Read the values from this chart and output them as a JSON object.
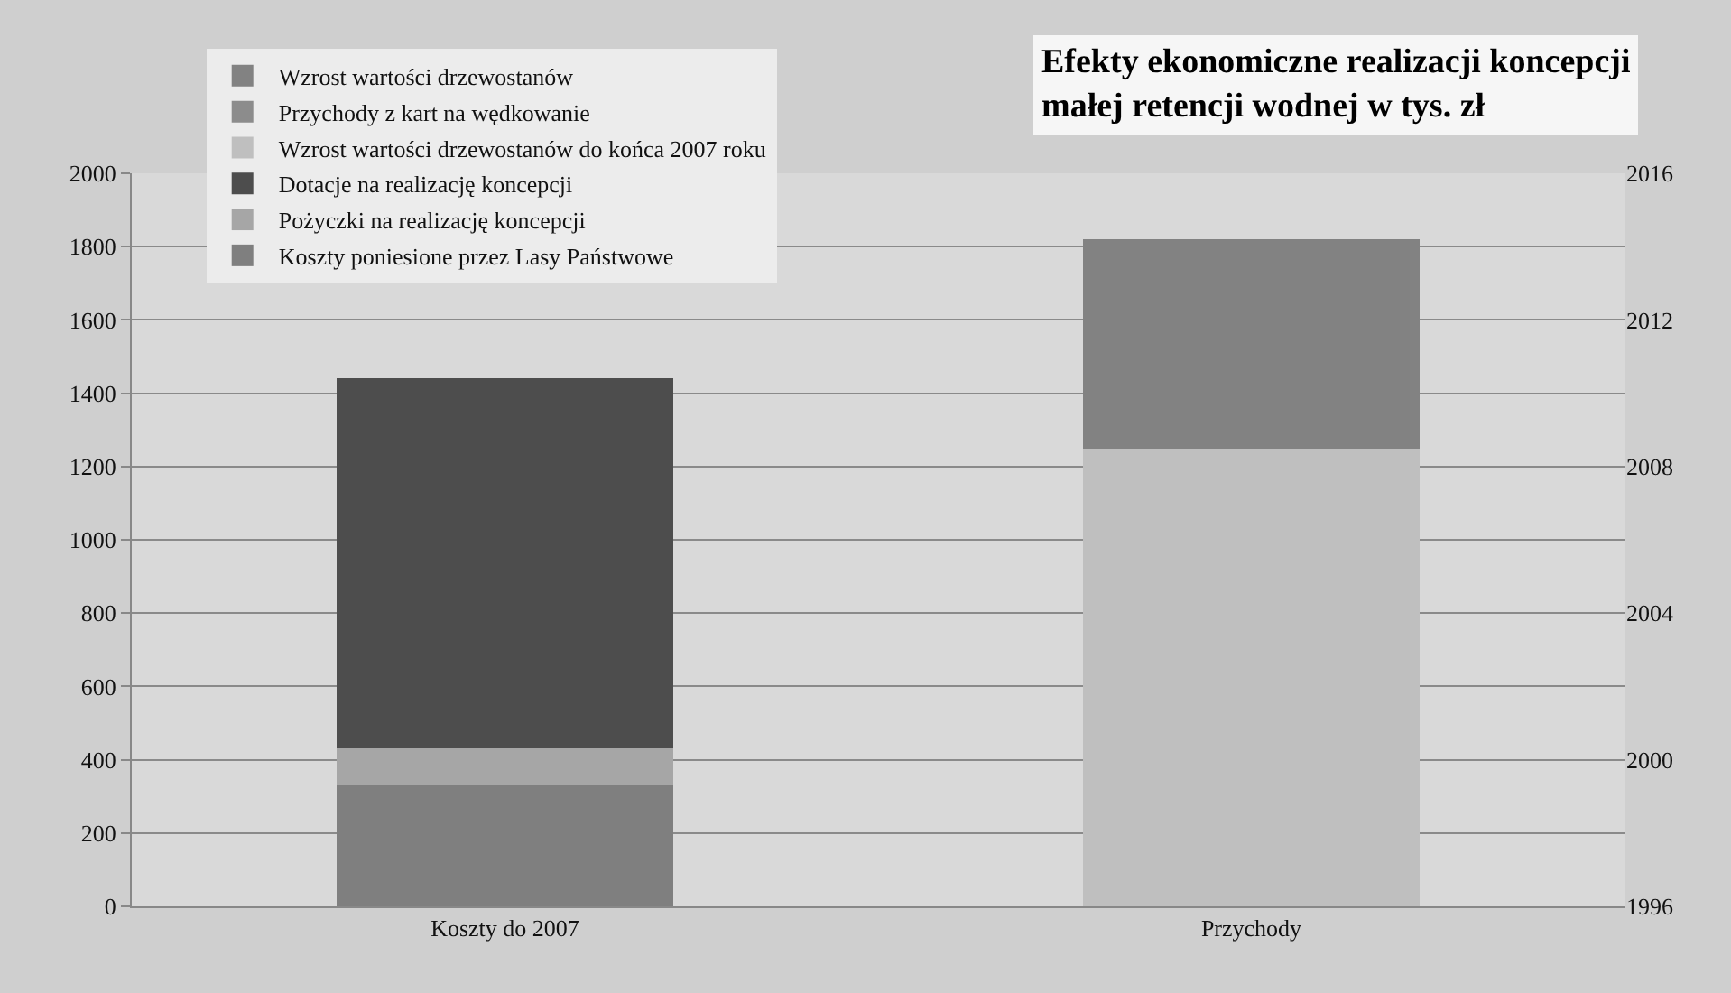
{
  "chart_data": {
    "type": "bar",
    "title": "Efekty ekonomiczne realizacji koncepcji\nmałej retencji wodnej w tys. zł",
    "categories": [
      "Koszty do 2007",
      "Przychody"
    ],
    "stacked": true,
    "series": [
      {
        "name": "Koszty poniesione przez Lasy Państwowe",
        "color": "#7f7f7f",
        "values": [
          330,
          null
        ]
      },
      {
        "name": "Pożyczki na realizację koncepcji",
        "color": "#a6a6a6",
        "values": [
          100,
          null
        ]
      },
      {
        "name": "Dotacje na realizację koncepcji",
        "color": "#4d4d4d",
        "values": [
          1010,
          null
        ]
      },
      {
        "name": "Wzrost wartości drzewostanów do końca 2007 roku",
        "color": "#bfbfbf",
        "values": [
          null,
          1250
        ]
      },
      {
        "name": "Przychody z kart na wędkowanie",
        "color": "#8c8c8c",
        "values": [
          null,
          null
        ]
      },
      {
        "name": "Wzrost wartości drzewostanów",
        "color": "#828282",
        "values": [
          null,
          570
        ]
      }
    ],
    "ylim": [
      0,
      2000
    ],
    "yticks": [
      0,
      200,
      400,
      600,
      800,
      1000,
      1200,
      1400,
      1600,
      1800,
      2000
    ],
    "y2lim": [
      1996,
      2016
    ],
    "y2ticks": [
      1996,
      2000,
      2004,
      2008,
      2012,
      2016
    ],
    "grid": "y",
    "legend": "top left"
  }
}
